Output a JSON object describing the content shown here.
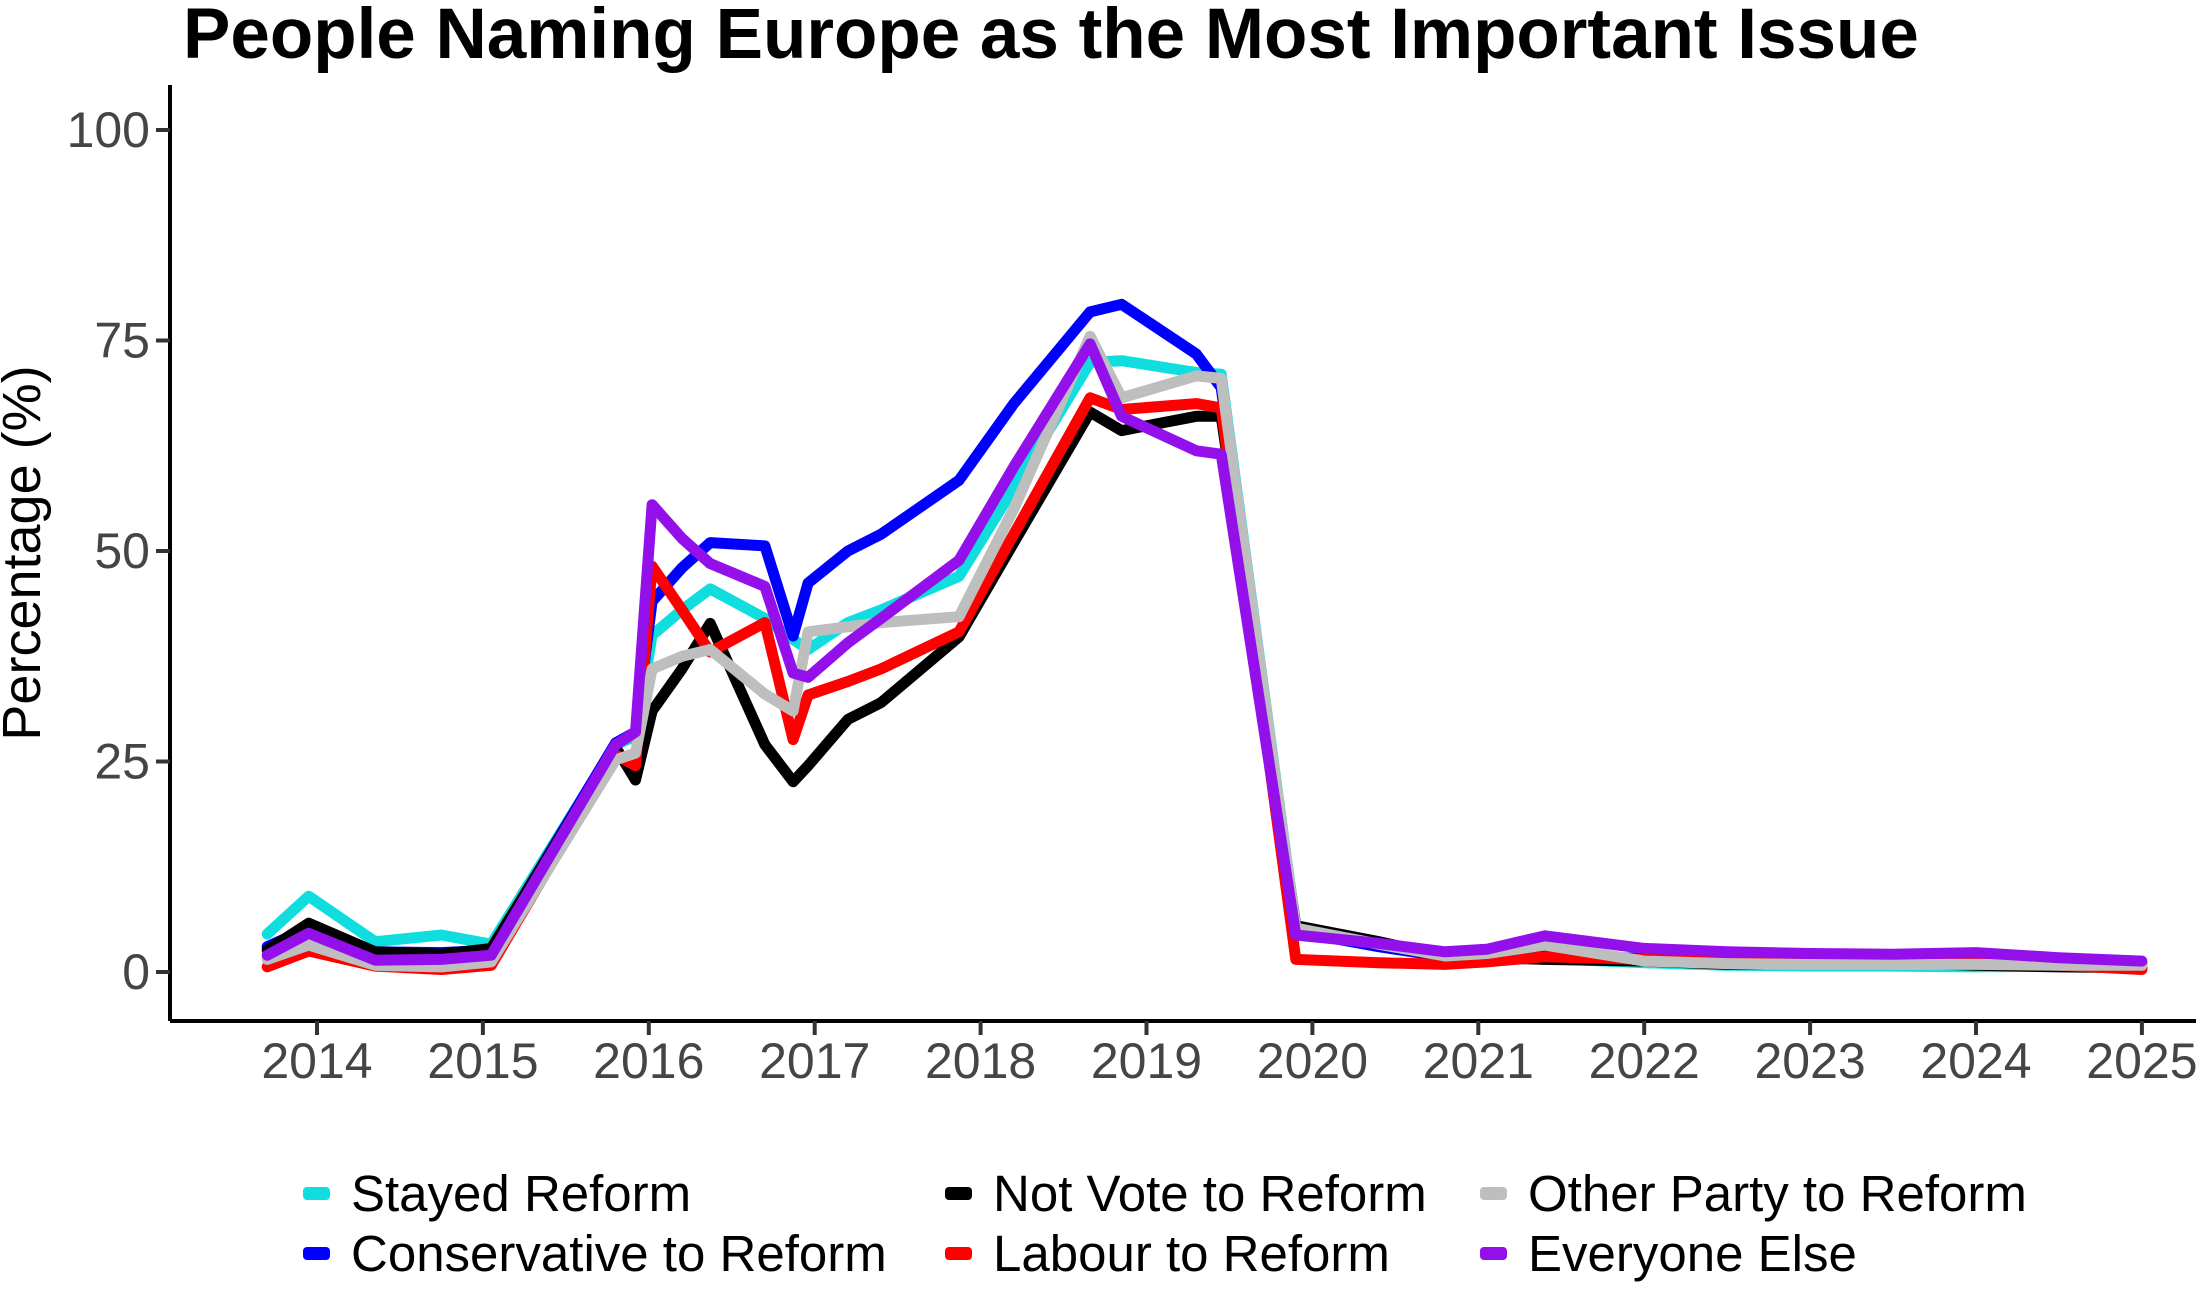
{
  "chart_data": {
    "type": "line",
    "title": "People Naming Europe as the Most Important Issue",
    "xlabel": "",
    "ylabel": "Percentage (%)",
    "x_ticks": [
      2014,
      2015,
      2016,
      2017,
      2018,
      2019,
      2020,
      2021,
      2022,
      2023,
      2024,
      2025
    ],
    "y_ticks": [
      0,
      25,
      50,
      75,
      100
    ],
    "ylim": [
      0,
      100
    ],
    "xlim": [
      2013.55,
      2025.3
    ],
    "grid": false,
    "legend_position": "bottom",
    "x": [
      2013.7,
      2013.95,
      2014.35,
      2014.75,
      2015.05,
      2015.8,
      2015.92,
      2016.02,
      2016.2,
      2016.37,
      2016.7,
      2016.87,
      2016.96,
      2017.2,
      2017.4,
      2017.87,
      2018.2,
      2018.66,
      2018.85,
      2019.3,
      2019.45,
      2019.9,
      2020.4,
      2020.8,
      2021.05,
      2021.4,
      2022.0,
      2022.5,
      2023.0,
      2023.5,
      2024.0,
      2024.5,
      2025.0
    ],
    "series": [
      {
        "name": "Stayed Reform",
        "color": "#10DEDE",
        "values": [
          4.5,
          9.0,
          3.6,
          4.4,
          3.3,
          27.0,
          28.0,
          40.0,
          43.0,
          45.5,
          42.0,
          39.5,
          38.3,
          41.5,
          43.0,
          47.0,
          57.5,
          72.4,
          72.6,
          71.2,
          71.0,
          5.3,
          3.4,
          2.0,
          1.9,
          1.6,
          1.1,
          0.8,
          0.7,
          0.7,
          0.6,
          0.7,
          0.5
        ]
      },
      {
        "name": "Conservative to Reform",
        "color": "#0000FF",
        "values": [
          3.0,
          5.2,
          2.4,
          2.3,
          2.6,
          27.2,
          28.5,
          44.0,
          48.0,
          51.0,
          50.6,
          39.9,
          46.2,
          50.0,
          52.0,
          58.4,
          67.5,
          78.4,
          79.3,
          73.4,
          69.4,
          4.8,
          3.0,
          1.8,
          1.8,
          2.0,
          1.6,
          1.4,
          1.3,
          1.3,
          1.2,
          1.0,
          0.9
        ]
      },
      {
        "name": "Not Vote to Reform",
        "color": "#000000",
        "values": [
          2.6,
          5.8,
          2.4,
          2.1,
          2.8,
          26.7,
          22.8,
          31.0,
          36.0,
          41.4,
          27.0,
          22.6,
          24.5,
          30.0,
          32.0,
          39.8,
          51.0,
          66.5,
          64.3,
          66.0,
          66.0,
          5.5,
          3.6,
          1.9,
          1.7,
          1.5,
          1.3,
          0.9,
          1.0,
          1.1,
          0.8,
          0.6,
          0.5
        ]
      },
      {
        "name": "Labour to Reform",
        "color": "#FF0000",
        "values": [
          0.6,
          2.5,
          0.7,
          0.3,
          0.8,
          25.8,
          24.5,
          48.2,
          43.0,
          38.0,
          41.5,
          27.6,
          32.9,
          34.5,
          36.0,
          40.4,
          52.0,
          68.2,
          66.8,
          67.5,
          67.0,
          1.5,
          1.1,
          0.9,
          1.2,
          1.8,
          1.5,
          1.4,
          1.3,
          1.2,
          1.1,
          0.8,
          0.3
        ]
      },
      {
        "name": "Other Party to Reform",
        "color": "#BEBEBE",
        "values": [
          1.5,
          3.2,
          0.8,
          0.6,
          1.2,
          25.2,
          26.0,
          36.0,
          37.5,
          38.3,
          33.0,
          31.0,
          40.4,
          41.0,
          41.5,
          42.2,
          55.0,
          75.5,
          68.2,
          70.8,
          70.5,
          5.2,
          3.3,
          1.9,
          2.2,
          3.2,
          1.3,
          1.0,
          0.9,
          0.9,
          0.9,
          0.8,
          0.8
        ]
      },
      {
        "name": "Everyone Else",
        "color": "#9410EB",
        "values": [
          2.0,
          4.6,
          1.4,
          1.5,
          2.0,
          27.0,
          28.5,
          55.5,
          51.5,
          48.5,
          45.8,
          35.5,
          35.0,
          39.1,
          42.0,
          48.9,
          60.0,
          74.6,
          66.0,
          61.9,
          61.5,
          4.4,
          3.4,
          2.4,
          2.7,
          4.3,
          2.8,
          2.4,
          2.2,
          2.1,
          2.3,
          1.7,
          1.3
        ]
      }
    ]
  },
  "colors": {
    "axis_line": "#000000",
    "tick_mark": "#333333",
    "tick_label": "#454545",
    "title_text": "#000000",
    "legend_text": "#000000",
    "background": "#FFFFFF"
  }
}
